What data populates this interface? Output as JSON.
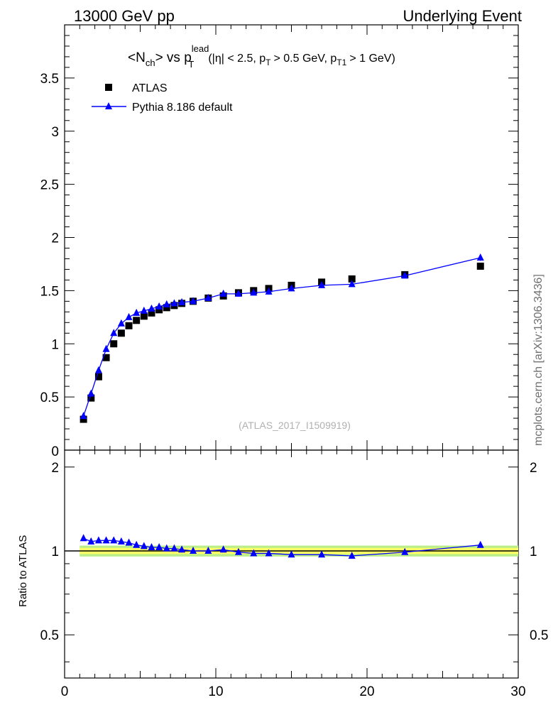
{
  "header": {
    "left": "13000 GeV pp",
    "right": "Underlying Event"
  },
  "side_label": "mcplots.cern.ch [arXiv:1306.3436]",
  "watermark": "(ATLAS_2017_I1509919)",
  "colors": {
    "data": "#000000",
    "mc": "#0000ff",
    "band_inner": "#ffff66",
    "band_outer": "#bbee88"
  },
  "chart_data": [
    {
      "type": "scatter",
      "title_parts": {
        "main": "<N",
        "sub1": "ch",
        "mid": "> vs p",
        "sup": "lead",
        "sub2": "T",
        "rest": "(|η| < 2.5, p",
        "rest_sub1": "T",
        "rest2": "> 0.5 GeV, p",
        "rest_sub2": "T1",
        "rest3": "> 1 GeV)"
      },
      "xlim": [
        0,
        30
      ],
      "ylim": [
        0,
        4
      ],
      "y_ticks": [
        {
          "v": 0.5,
          "label": "0.5"
        },
        {
          "v": 1,
          "label": "1"
        },
        {
          "v": 1.5,
          "label": "1.5"
        },
        {
          "v": 2,
          "label": "2"
        },
        {
          "v": 2.5,
          "label": "2.5"
        },
        {
          "v": 3,
          "label": "3"
        },
        {
          "v": 3.5,
          "label": "3.5"
        },
        {
          "v": 0,
          "label": "0"
        }
      ],
      "legend": [
        "ATLAS",
        "Pythia 8.186 default"
      ],
      "series": [
        {
          "name": "ATLAS",
          "marker": "square",
          "x": [
            1.25,
            1.75,
            2.25,
            2.75,
            3.25,
            3.75,
            4.25,
            4.75,
            5.25,
            5.75,
            6.25,
            6.75,
            7.25,
            7.75,
            8.5,
            9.5,
            10.5,
            11.5,
            12.5,
            13.5,
            15.0,
            17.0,
            19.0,
            22.5,
            27.5
          ],
          "y": [
            0.29,
            0.49,
            0.69,
            0.87,
            1.0,
            1.1,
            1.17,
            1.22,
            1.26,
            1.29,
            1.32,
            1.34,
            1.36,
            1.38,
            1.4,
            1.43,
            1.45,
            1.48,
            1.5,
            1.52,
            1.55,
            1.58,
            1.61,
            1.65,
            1.73
          ]
        },
        {
          "name": "Pythia 8.186 default",
          "marker": "triangle",
          "x": [
            1.25,
            1.75,
            2.25,
            2.75,
            3.25,
            3.75,
            4.25,
            4.75,
            5.25,
            5.75,
            6.25,
            6.75,
            7.25,
            7.75,
            8.5,
            9.5,
            10.5,
            11.5,
            12.5,
            13.5,
            15.0,
            17.0,
            19.0,
            22.5,
            27.5
          ],
          "y": [
            0.32,
            0.53,
            0.75,
            0.95,
            1.1,
            1.19,
            1.25,
            1.29,
            1.31,
            1.33,
            1.35,
            1.37,
            1.38,
            1.39,
            1.4,
            1.43,
            1.47,
            1.47,
            1.48,
            1.49,
            1.52,
            1.55,
            1.56,
            1.64,
            1.81
          ]
        }
      ]
    },
    {
      "type": "line",
      "ylabel": "Ratio to ATLAS",
      "xlim": [
        0,
        30
      ],
      "ylim": [
        0.35,
        2.3
      ],
      "y_ticks": [
        {
          "v": 0.5,
          "label": "0.5"
        },
        {
          "v": 1,
          "label": "1"
        },
        {
          "v": 2,
          "label": "2"
        }
      ],
      "x_ticks": [
        {
          "v": 0,
          "label": "0"
        },
        {
          "v": 10,
          "label": "10"
        },
        {
          "v": 20,
          "label": "20"
        },
        {
          "v": 30,
          "label": "30"
        }
      ],
      "series": [
        {
          "name": "Pythia 8.186 default",
          "marker": "triangle",
          "x": [
            1.25,
            1.75,
            2.25,
            2.75,
            3.25,
            3.75,
            4.25,
            4.75,
            5.25,
            5.75,
            6.25,
            6.75,
            7.25,
            7.75,
            8.5,
            9.5,
            10.5,
            11.5,
            12.5,
            13.5,
            15.0,
            17.0,
            19.0,
            22.5,
            27.5
          ],
          "y": [
            1.11,
            1.08,
            1.09,
            1.09,
            1.09,
            1.08,
            1.07,
            1.05,
            1.04,
            1.03,
            1.03,
            1.02,
            1.02,
            1.01,
            1.0,
            1.0,
            1.01,
            0.99,
            0.98,
            0.98,
            0.97,
            0.97,
            0.96,
            0.99,
            1.05
          ]
        }
      ]
    }
  ]
}
